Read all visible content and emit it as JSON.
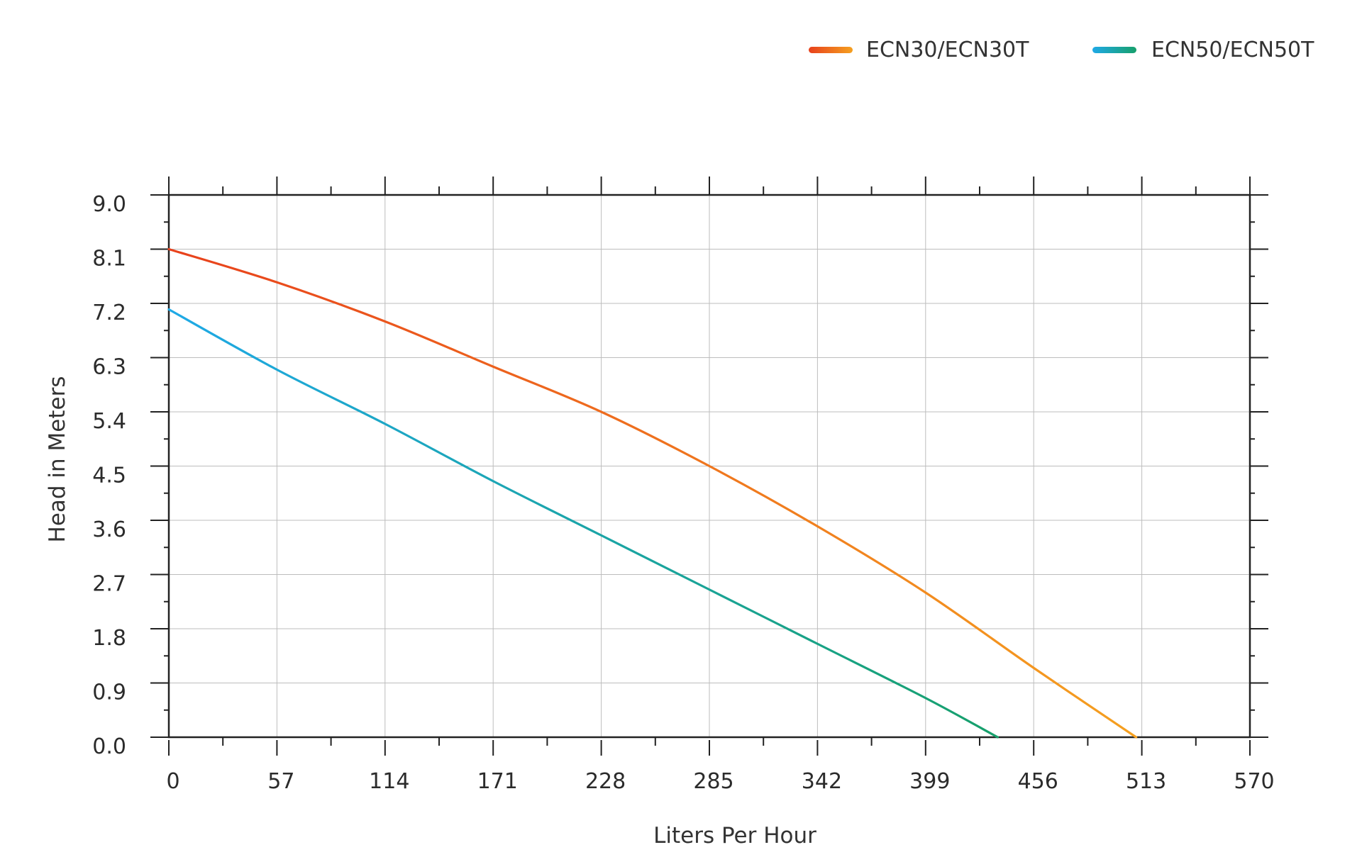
{
  "chart_data": {
    "type": "line",
    "title": "",
    "xlabel": "Liters Per Hour",
    "ylabel": "Head in Meters",
    "xlim": [
      0,
      570
    ],
    "ylim": [
      0,
      9.0
    ],
    "x_ticks": [
      "0",
      "57",
      "114",
      "171",
      "228",
      "285",
      "342",
      "399",
      "456",
      "513",
      "570"
    ],
    "y_ticks": [
      "0.0",
      "0.9",
      "1.8",
      "2.7",
      "3.6",
      "4.5",
      "5.4",
      "6.3",
      "7.2",
      "8.1",
      "9.0"
    ],
    "grid": true,
    "legend_position": "top-right",
    "series": [
      {
        "name": "ECN30/ECN30T",
        "gradient": [
          "#e8411c",
          "#f5a020"
        ],
        "x": [
          0,
          57,
          114,
          171,
          228,
          285,
          342,
          399,
          456,
          510
        ],
        "y": [
          8.1,
          7.55,
          6.9,
          6.15,
          5.4,
          4.5,
          3.5,
          2.4,
          1.15,
          0.0
        ]
      },
      {
        "name": "ECN50/ECN50T",
        "gradient": [
          "#1fa9e6",
          "#17a06b"
        ],
        "x": [
          0,
          57,
          114,
          171,
          228,
          285,
          342,
          399,
          437
        ],
        "y": [
          7.1,
          6.1,
          5.2,
          4.25,
          3.35,
          2.45,
          1.55,
          0.65,
          0.0
        ]
      }
    ]
  }
}
